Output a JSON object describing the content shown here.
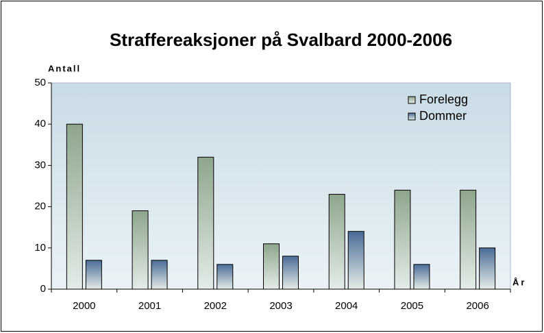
{
  "chart_data": {
    "type": "bar",
    "title": "Straffereaksjoner på Svalbard 2000-2006",
    "y_label": "Antall",
    "x_label": "År",
    "categories": [
      "2000",
      "2001",
      "2002",
      "2003",
      "2004",
      "2005",
      "2006"
    ],
    "series": [
      {
        "name": "Forelegg",
        "color": "#8ea58c",
        "values": [
          40,
          19,
          32,
          11,
          23,
          24,
          24
        ]
      },
      {
        "name": "Dommer",
        "color": "#4b6b96",
        "values": [
          7,
          7,
          6,
          8,
          14,
          6,
          10
        ]
      }
    ],
    "ylim": [
      0,
      50
    ],
    "yticks": [
      0,
      10,
      20,
      30,
      40,
      50
    ],
    "legend": "upper right"
  }
}
